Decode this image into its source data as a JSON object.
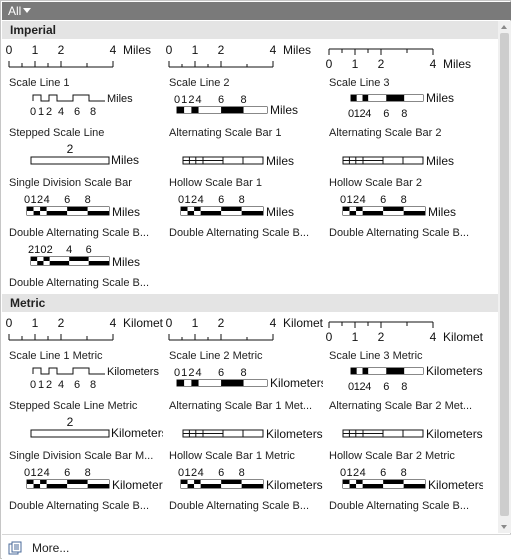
{
  "toolbar": {
    "all_label": "All"
  },
  "sections": [
    {
      "title": "Imperial",
      "items": [
        {
          "name": "Scale Line 1",
          "unit": "Miles"
        },
        {
          "name": "Scale Line 2",
          "unit": "Miles"
        },
        {
          "name": "Scale Line 3",
          "unit": "Miles"
        },
        {
          "name": "Stepped Scale Line",
          "unit": "Miles"
        },
        {
          "name": "Alternating Scale Bar 1",
          "unit": "Miles"
        },
        {
          "name": "Alternating Scale Bar 2",
          "unit": "Miles"
        },
        {
          "name": "Single Division Scale Bar",
          "unit": "Miles"
        },
        {
          "name": "Hollow Scale Bar 1",
          "unit": "Miles"
        },
        {
          "name": "Hollow Scale Bar 2",
          "unit": "Miles"
        },
        {
          "name": "Double Alternating Scale B...",
          "unit": "Miles"
        },
        {
          "name": "Double Alternating Scale B...",
          "unit": "Miles"
        },
        {
          "name": "Double Alternating Scale B...",
          "unit": "Miles"
        },
        {
          "name": "Double Alternating Scale B...",
          "unit": "Miles"
        }
      ]
    },
    {
      "title": "Metric",
      "items": [
        {
          "name": "Scale Line 1 Metric",
          "unit": "Kilometers"
        },
        {
          "name": "Scale Line 2 Metric",
          "unit": "Kilometers"
        },
        {
          "name": "Scale Line 3 Metric",
          "unit": "Kilometers"
        },
        {
          "name": "Stepped Scale Line Metric",
          "unit": "Kilometers"
        },
        {
          "name": "Alternating Scale Bar 1 Met...",
          "unit": "Kilometers"
        },
        {
          "name": "Alternating Scale Bar 2 Met...",
          "unit": "Kilometers"
        },
        {
          "name": "Single Division Scale Bar M...",
          "unit": "Kilometers"
        },
        {
          "name": "Hollow Scale Bar 1 Metric",
          "unit": "Kilometers"
        },
        {
          "name": "Hollow Scale Bar 2 Metric",
          "unit": "Kilometers"
        },
        {
          "name": "Double Alternating Scale B...",
          "unit": "Kilometers"
        },
        {
          "name": "Double Alternating Scale B...",
          "unit": "Kilometers"
        },
        {
          "name": "Double Alternating Scale B...",
          "unit": "Kilometers"
        },
        {
          "name": "",
          "unit": ""
        }
      ]
    }
  ],
  "ticks": {
    "standard": [
      "0",
      "1",
      "2",
      "4"
    ],
    "stepped": [
      "0",
      "1",
      "2",
      "4",
      "6",
      "8"
    ],
    "alt": [
      "0",
      "1",
      "2",
      "4",
      "6",
      "8"
    ],
    "hollow2": [
      "2",
      "1",
      "0",
      "2",
      "4",
      "6",
      "8"
    ],
    "single": [
      "2"
    ]
  },
  "footer": {
    "more_label": "More..."
  }
}
